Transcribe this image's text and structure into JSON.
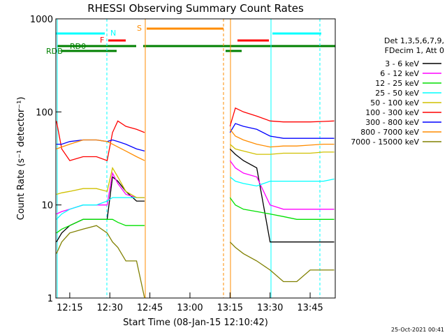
{
  "chart_data": {
    "type": "line",
    "title": "RHESSI Observing Summary Count Rates",
    "x_label": "Start Time (08-Jan-15 12:10:42)",
    "y_label": "Count Rate (s⁻¹ detector⁻¹)",
    "legend_header": [
      "Det 1,3,5,6,7,9,",
      "FDecim 1, Att 0"
    ],
    "flag_labels": [
      "N",
      "F",
      "S",
      "RD0",
      "RDB"
    ],
    "timestamp": "25-Oct-2021 00:41",
    "log_y": true,
    "xlim": [
      9.8,
      114.4
    ],
    "xticks": [
      {
        "value": 15,
        "label": "12:15"
      },
      {
        "value": 30,
        "label": "12:30"
      },
      {
        "value": 45,
        "label": "12:45"
      },
      {
        "value": 60,
        "label": "13:00"
      },
      {
        "value": 75,
        "label": "13:15"
      },
      {
        "value": 90,
        "label": "13:30"
      },
      {
        "value": 105,
        "label": "13:45"
      }
    ],
    "ylim": [
      1,
      1000
    ],
    "yticks": [
      1,
      10,
      100,
      1000
    ],
    "x": [
      10,
      12,
      15,
      20,
      25,
      29,
      31,
      33,
      36,
      40,
      43,
      59,
      75,
      77,
      80,
      85,
      90,
      95,
      100,
      105,
      110,
      114
    ],
    "series": [
      {
        "name": "3 - 6 keV",
        "color": "#000000",
        "values": [
          4,
          5,
          6,
          7,
          7,
          7,
          20,
          18,
          14,
          11,
          11,
          null,
          40,
          35,
          30,
          25,
          4,
          4,
          4,
          4,
          4,
          4
        ]
      },
      {
        "name": "6 - 12 keV",
        "color": "#ff00ff",
        "values": [
          8,
          8.5,
          9,
          10,
          10,
          10,
          22,
          17,
          13,
          12,
          12,
          null,
          30,
          25,
          22,
          20,
          10,
          9,
          9,
          9,
          9,
          9
        ]
      },
      {
        "name": "12 - 25 keV",
        "color": "#00e000",
        "values": [
          5,
          5.5,
          6,
          7,
          7,
          7,
          7,
          6.5,
          6,
          6,
          6,
          null,
          12,
          10,
          9,
          8.5,
          8,
          7.5,
          7,
          7,
          7,
          7
        ]
      },
      {
        "name": "25 - 50 keV",
        "color": "#00ffff",
        "values": [
          7,
          8,
          9,
          10,
          10,
          11,
          12,
          12,
          12,
          12,
          12,
          null,
          20,
          18,
          17,
          16,
          18,
          18,
          18,
          18,
          18,
          19
        ]
      },
      {
        "name": "50 - 100 keV",
        "color": "#d0c000",
        "values": [
          13,
          13.5,
          14,
          15,
          15,
          14,
          25,
          20,
          14,
          12,
          12,
          null,
          45,
          40,
          38,
          35,
          35,
          36,
          36,
          36,
          37,
          37
        ]
      },
      {
        "name": "100 - 300 keV",
        "color": "#ff0000",
        "values": [
          80,
          40,
          30,
          33,
          33,
          30,
          60,
          80,
          70,
          65,
          60,
          null,
          70,
          110,
          100,
          90,
          80,
          78,
          78,
          78,
          79,
          80
        ]
      },
      {
        "name": "300 - 800 keV",
        "color": "#0000ff",
        "values": [
          45,
          45,
          48,
          50,
          50,
          48,
          50,
          48,
          45,
          40,
          38,
          null,
          60,
          75,
          70,
          65,
          55,
          52,
          52,
          52,
          52,
          52
        ]
      },
      {
        "name": "800 - 7000 keV",
        "color": "#ff8c00",
        "values": [
          40,
          42,
          45,
          50,
          50,
          48,
          45,
          42,
          38,
          33,
          30,
          null,
          65,
          55,
          50,
          45,
          42,
          43,
          43,
          44,
          45,
          45
        ]
      },
      {
        "name": "7000 - 15000 keV",
        "color": "#808000",
        "values": [
          3,
          4,
          5,
          5.5,
          6,
          5,
          4,
          3.5,
          2.5,
          2.5,
          1,
          null,
          4,
          3.5,
          3,
          2.5,
          2,
          1.5,
          1.5,
          2,
          2,
          2
        ]
      }
    ]
  }
}
